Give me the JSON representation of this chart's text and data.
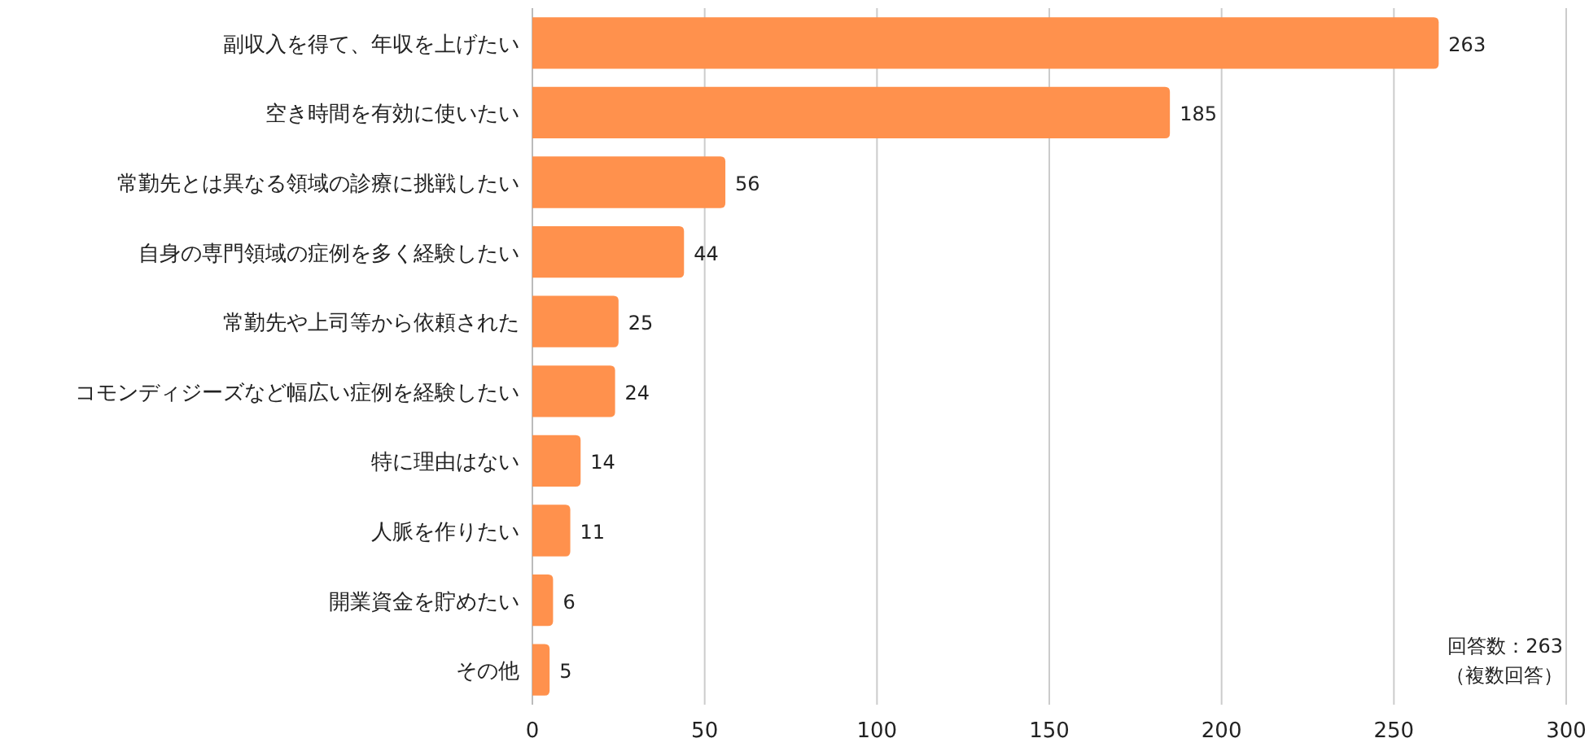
{
  "chart_data": {
    "type": "bar",
    "orientation": "horizontal",
    "categories": [
      "副収入を得て、年収を上げたい",
      "空き時間を有効に使いたい",
      "常勤先とは異なる領域の診療に挑戦したい",
      "自身の専門領域の症例を多く経験したい",
      "常勤先や上司等から依頼された",
      "コモンディジーズなど幅広い症例を経験したい",
      "特に理由はない",
      "人脈を作りたい",
      "開業資金を貯めたい",
      "その他"
    ],
    "values": [
      263,
      185,
      56,
      44,
      25,
      24,
      14,
      11,
      6,
      5
    ],
    "color": "#ff914d",
    "xlim": [
      0,
      300
    ],
    "xticks": [
      0,
      50,
      100,
      150,
      200,
      250,
      300
    ],
    "grid": "x",
    "data_labels": true,
    "annotations": [
      "回答数：263",
      "（複数回答）"
    ]
  }
}
